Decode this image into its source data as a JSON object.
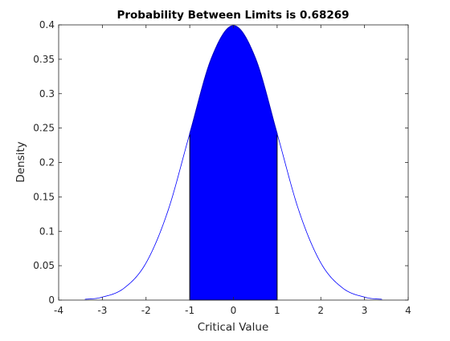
{
  "chart_data": {
    "type": "area",
    "title": "Probability Between Limits is 0.68269",
    "xlabel": "Critical Value",
    "ylabel": "Density",
    "xlim": [
      -4,
      4
    ],
    "ylim": [
      0,
      0.4
    ],
    "xticks": [
      "-4",
      "-3",
      "-2",
      "-1",
      "0",
      "1",
      "2",
      "3",
      "4"
    ],
    "yticks": [
      "0",
      "0.05",
      "0.1",
      "0.15",
      "0.2",
      "0.25",
      "0.3",
      "0.35",
      "0.4"
    ],
    "grid": false,
    "series": [
      {
        "x": [
          -3.4,
          -3.0,
          -2.5,
          -2.0,
          -1.5,
          -1.0,
          -0.5,
          0.0,
          0.5,
          1.0,
          1.5,
          2.0,
          2.5,
          3.0,
          3.4
        ],
        "y": [
          0.0012,
          0.0044,
          0.0175,
          0.054,
          0.1295,
          0.242,
          0.3521,
          0.3989,
          0.3521,
          0.242,
          0.1295,
          0.054,
          0.0175,
          0.0044,
          0.0012
        ],
        "color": "#0000ff"
      }
    ],
    "shaded_region": {
      "x_from": -1,
      "x_to": 1,
      "fill": "#0000ff",
      "edge": "#000000"
    }
  }
}
